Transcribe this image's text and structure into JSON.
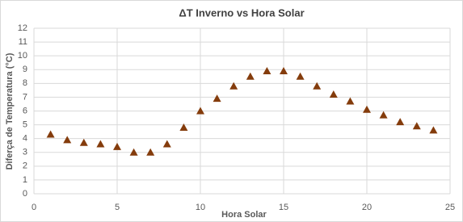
{
  "chart_data": {
    "type": "scatter",
    "title": "ΔT Inverno vs Hora Solar",
    "x_label": "Hora Solar",
    "y_label": "Diferça de Temperatura (°C)",
    "x": [
      1,
      2,
      3,
      4,
      5,
      6,
      7,
      8,
      9,
      10,
      11,
      12,
      13,
      14,
      15,
      16,
      17,
      18,
      19,
      20,
      21,
      22,
      23,
      24
    ],
    "values": [
      4.3,
      3.9,
      3.7,
      3.6,
      3.4,
      3.0,
      3.0,
      3.6,
      4.8,
      6.0,
      6.9,
      7.8,
      8.5,
      8.9,
      8.9,
      8.5,
      7.8,
      7.2,
      6.7,
      6.1,
      5.7,
      5.2,
      4.9,
      4.6
    ],
    "color": "#843c0c",
    "xlim": [
      0,
      25
    ],
    "xticks": [
      0,
      5,
      10,
      15,
      20,
      25
    ],
    "ylim": [
      0,
      12
    ],
    "yticks": [
      0,
      1,
      2,
      3,
      4,
      5,
      6,
      7,
      8,
      9,
      10,
      11,
      12
    ],
    "grid": true
  }
}
